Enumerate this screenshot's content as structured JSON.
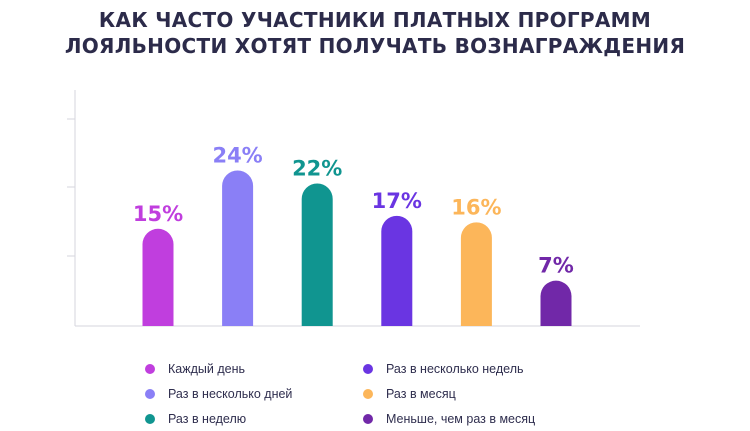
{
  "title": {
    "line1": "КАК ЧАСТО УЧАСТНИКИ ПЛАТНЫХ ПРОГРАММ",
    "line2": "ЛОЯЛЬНОСТИ ХОТЯТ ПОЛУЧАТЬ ВОЗНАГРАЖДЕНИЯ"
  },
  "chart_data": {
    "type": "bar",
    "title": "КАК ЧАСТО УЧАСТНИКИ ПЛАТНЫХ ПРОГРАММ ЛОЯЛЬНОСТИ ХОТЯТ ПОЛУЧАТЬ ВОЗНАГРАЖДЕНИЯ",
    "categories": [
      "Каждый день",
      "Раз в несколько дней",
      "Раз в неделю",
      "Раз в несколько недель",
      "Раз в месяц",
      "Меньше, чем раз в месяц"
    ],
    "values": [
      15,
      24,
      22,
      17,
      16,
      7
    ],
    "value_labels": [
      "15%",
      "24%",
      "22%",
      "17%",
      "16%",
      "7%"
    ],
    "colors": [
      "#c03ede",
      "#8a7ff6",
      "#109590",
      "#6a35e2",
      "#fcb65a",
      "#7128a8"
    ],
    "unit": "%",
    "ylim": [
      0,
      30
    ],
    "grid": false,
    "xlabel": "",
    "ylabel": "",
    "legend_position": "bottom"
  }
}
